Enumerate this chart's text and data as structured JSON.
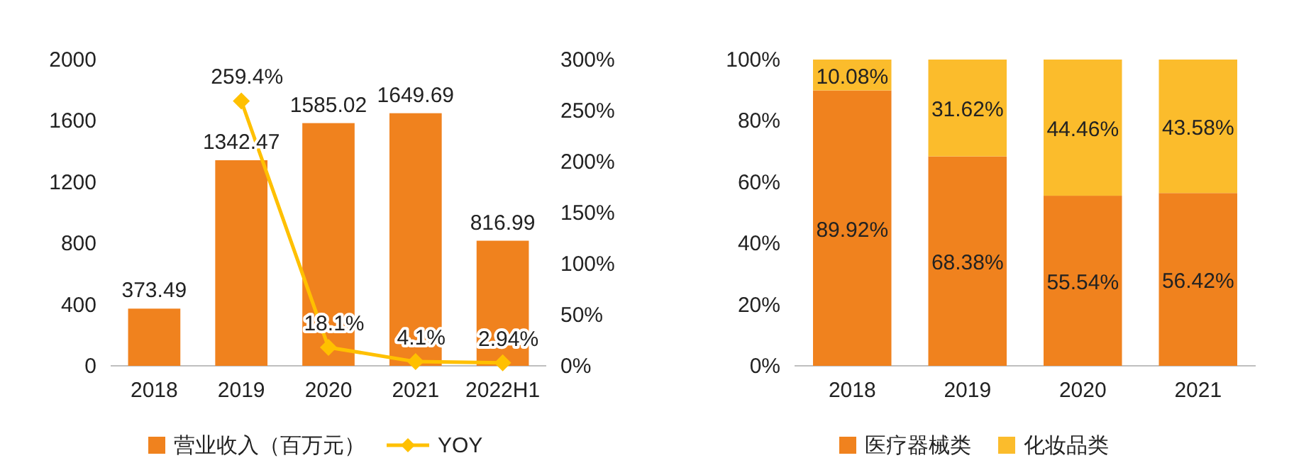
{
  "chart_data": [
    {
      "type": "bar",
      "categories": [
        "2018",
        "2019",
        "2020",
        "2021",
        "2022H1"
      ],
      "series": [
        {
          "name": "营业收入（百万元）",
          "color": "#f0821e",
          "values": [
            373.49,
            1342.47,
            1585.02,
            1649.69,
            816.99
          ],
          "value_labels": [
            "373.49",
            "1342.47",
            "1585.02",
            "1649.69",
            "816.99"
          ]
        },
        {
          "name": "YOY",
          "type": "line",
          "axis": "y2",
          "color": "#ffc000",
          "values": [
            null,
            259.4,
            18.1,
            4.1,
            2.94
          ],
          "value_labels": [
            null,
            "259.4%",
            "18.1%",
            "4.1%",
            "2.94%"
          ]
        }
      ],
      "ylim": [
        0,
        2000
      ],
      "yticks": [
        0,
        400,
        800,
        1200,
        1600,
        2000
      ],
      "y2lim": [
        0,
        300
      ],
      "y2ticks": [
        {
          "value": 0,
          "label": "0%"
        },
        {
          "value": 50,
          "label": "50%"
        },
        {
          "value": 100,
          "label": "100%"
        },
        {
          "value": 150,
          "label": "150%"
        },
        {
          "value": 200,
          "label": "200%"
        },
        {
          "value": 250,
          "label": "250%"
        },
        {
          "value": 300,
          "label": "300%"
        }
      ],
      "marker": "diamond",
      "line_style": "solid",
      "legend": "bottom",
      "grid": false
    },
    {
      "type": "bar",
      "stacked": true,
      "categories": [
        "2018",
        "2019",
        "2020",
        "2021"
      ],
      "series": [
        {
          "name": "医疗器械类",
          "color": "#f0821e",
          "values": [
            89.92,
            68.38,
            55.54,
            56.42
          ],
          "value_labels": [
            "89.92%",
            "68.38%",
            "55.54%",
            "56.42%"
          ]
        },
        {
          "name": "化妆品类",
          "color": "#fbbc2c",
          "values": [
            10.08,
            31.62,
            44.46,
            43.58
          ],
          "value_labels": [
            "10.08%",
            "31.62%",
            "44.46%",
            "43.58%"
          ]
        }
      ],
      "ylim": [
        0,
        100
      ],
      "yticks": [
        {
          "value": 0,
          "label": "0%"
        },
        {
          "value": 20,
          "label": "20%"
        },
        {
          "value": 40,
          "label": "40%"
        },
        {
          "value": 60,
          "label": "60%"
        },
        {
          "value": 80,
          "label": "80%"
        },
        {
          "value": 100,
          "label": "100%"
        }
      ],
      "legend": "bottom",
      "grid": false
    }
  ]
}
